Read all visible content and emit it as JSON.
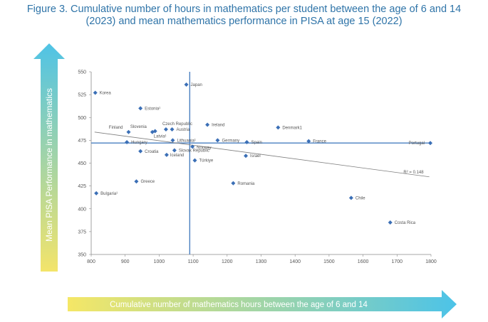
{
  "figure": {
    "title_line1": "Figure 3. Cumulative number of hours in mathematics per student between the age of 6 and 14",
    "title_line2": "(2023) and mean mathematics performance in PISA at age 15 (2022)"
  },
  "colors": {
    "title": "#2f74a8",
    "marker": "#3b6fb6",
    "mean_line": "#4a7fc0",
    "trend_line": "#7f7f7f",
    "axis": "#8a8a8a",
    "y_arrow_top": "#4fc3e6",
    "y_arrow_bottom": "#f3e46a",
    "x_arrow_left": "#f5e766",
    "x_arrow_right": "#4cc3e8"
  },
  "chart_data": {
    "type": "scatter",
    "xlabel": "Cumulative number of mathematics hours between the age of 6 and 14",
    "ylabel": "Mean PISA Performance in mathematics",
    "xlim": [
      800,
      1800
    ],
    "ylim": [
      350,
      550
    ],
    "xticks": [
      800,
      900,
      1000,
      1100,
      1200,
      1300,
      1400,
      1500,
      1600,
      1700,
      1800
    ],
    "yticks": [
      350,
      375,
      400,
      425,
      450,
      475,
      500,
      525,
      550
    ],
    "mean_x": 1090,
    "mean_y": 472,
    "trend": {
      "x": [
        810,
        1795
      ],
      "y": [
        484,
        435
      ],
      "label": "R² = 0.148"
    },
    "points": [
      {
        "name": "Korea",
        "x": 812,
        "y": 527
      },
      {
        "name": "Japan",
        "x": 1080,
        "y": 536
      },
      {
        "name": "Estonia¹",
        "x": 945,
        "y": 510
      },
      {
        "name": "Finland",
        "x": 910,
        "y": 484
      },
      {
        "name": "Slovenia",
        "x": 980,
        "y": 484
      },
      {
        "name": "Latvia¹",
        "x": 988,
        "y": 485
      },
      {
        "name": "Czech Republic",
        "x": 1020,
        "y": 487
      },
      {
        "name": "Austria",
        "x": 1038,
        "y": 487
      },
      {
        "name": "Ireland",
        "x": 1142,
        "y": 492
      },
      {
        "name": "Denmark1",
        "x": 1350,
        "y": 489
      },
      {
        "name": "Hungary",
        "x": 905,
        "y": 473
      },
      {
        "name": "Lithuania¹",
        "x": 1040,
        "y": 475
      },
      {
        "name": "Germany",
        "x": 1172,
        "y": 475
      },
      {
        "name": "Spain",
        "x": 1258,
        "y": 473
      },
      {
        "name": "France",
        "x": 1440,
        "y": 474
      },
      {
        "name": "Portugal",
        "x": 1798,
        "y": 472
      },
      {
        "name": "Norway",
        "x": 1098,
        "y": 468
      },
      {
        "name": "Croatia",
        "x": 945,
        "y": 463
      },
      {
        "name": "Slovak Republic",
        "x": 1045,
        "y": 464
      },
      {
        "name": "Iceland",
        "x": 1022,
        "y": 459
      },
      {
        "name": "Israel",
        "x": 1255,
        "y": 458
      },
      {
        "name": "Türkiye",
        "x": 1105,
        "y": 453
      },
      {
        "name": "Greece",
        "x": 933,
        "y": 430
      },
      {
        "name": "Romania",
        "x": 1218,
        "y": 428
      },
      {
        "name": "Bulgaria¹",
        "x": 815,
        "y": 417
      },
      {
        "name": "Chile",
        "x": 1565,
        "y": 412
      },
      {
        "name": "Costa Rica",
        "x": 1680,
        "y": 385
      }
    ]
  }
}
